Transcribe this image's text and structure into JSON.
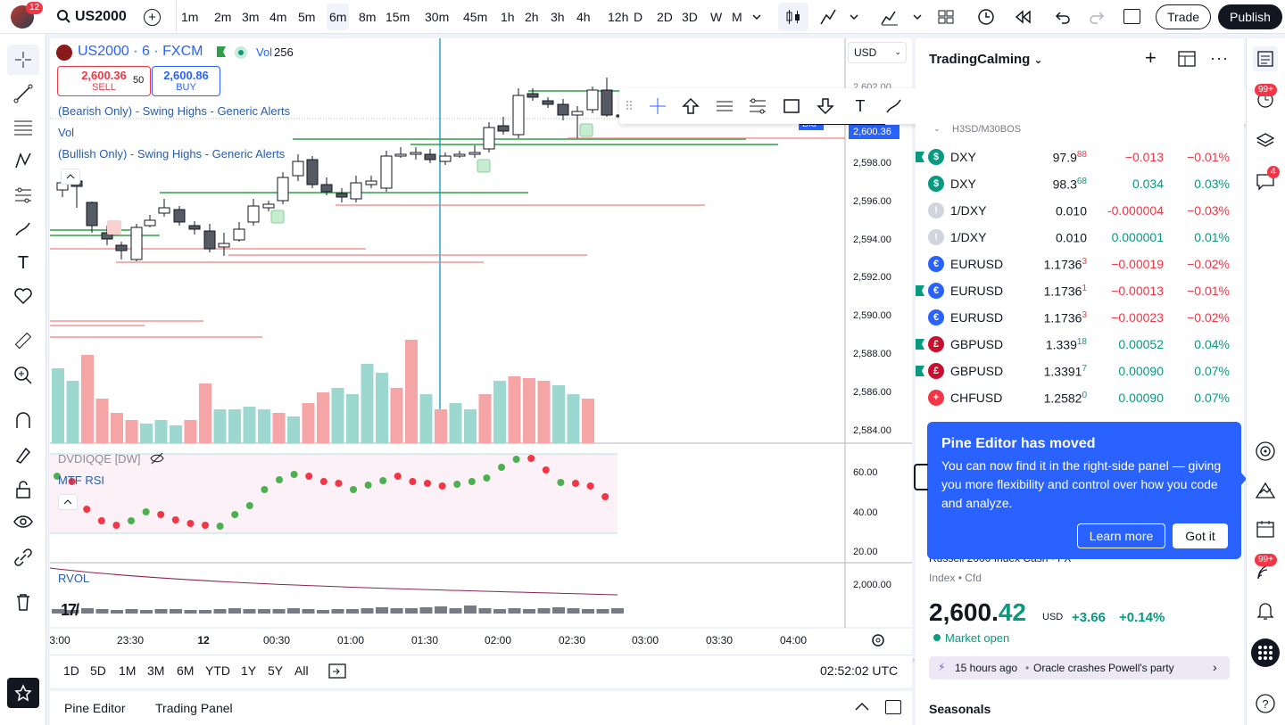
{
  "topbar": {
    "notif_count": "12",
    "symbol": "US2000",
    "intervals": [
      "1m",
      "2m",
      "3m",
      "4m",
      "5m",
      "6m",
      "8m",
      "15m",
      "30m",
      "45m",
      "1h",
      "2h",
      "3h",
      "4h",
      "12h",
      "D",
      "2D",
      "3D",
      "W",
      "M"
    ],
    "active_interval": "6m",
    "trade": "Trade",
    "publish": "Publish"
  },
  "legend": {
    "title": "US2000 · 6 · FXCM",
    "vol_label": "Vol",
    "vol_value": "256",
    "sell_price": "2,600.36",
    "sell_label": "SELL",
    "spread": "50",
    "buy_price": "2,600.86",
    "buy_label": "BUY",
    "ind1": "(Bearish Only) - Swing Highs - Generic Alerts",
    "ind2": "Vol",
    "ind3": "(Bullish Only) - Swing Highs - Generic Alerts",
    "pane2_a": "DVDIQQE [DW]",
    "pane2_b": "MTF RSI",
    "pane3": "RVOL"
  },
  "price_axis": {
    "currency": "USD",
    "labels": [
      "2,602.00",
      "2,598.00",
      "2,596.00",
      "2,594.00",
      "2,592.00",
      "2,590.00",
      "2,588.00",
      "2,586.00",
      "2,584.00"
    ],
    "bid_label": "Bid",
    "bid_price": "2,600.36",
    "rsi_labels": [
      "60.00",
      "40.00",
      "20.00"
    ],
    "rvol_label": "2,000.00"
  },
  "time_axis": [
    "3:00",
    "23:30",
    "12",
    "00:30",
    "01:00",
    "01:30",
    "02:00",
    "02:30",
    "03:00",
    "03:30",
    "04:00"
  ],
  "range_bar": {
    "ranges": [
      "1D",
      "5D",
      "1M",
      "3M",
      "6M",
      "YTD",
      "1Y",
      "5Y",
      "All"
    ],
    "clock": "02:52:02 UTC"
  },
  "bottom": {
    "pine": "Pine Editor",
    "trading": "Trading Panel"
  },
  "watchlist": {
    "title": "TradingCalming",
    "section": "H3SD/M30BOS",
    "rows": [
      {
        "sym": "DXY",
        "last": "97.9",
        "sup": "88",
        "chg": "−0.013",
        "chp": "−0.01%",
        "dir": "dn",
        "icon": "$",
        "color": "#089981",
        "flag": true
      },
      {
        "sym": "DXY",
        "last": "98.3",
        "sup": "68",
        "chg": "0.034",
        "chp": "0.03%",
        "dir": "up",
        "icon": "$",
        "color": "#089981",
        "flag": false
      },
      {
        "sym": "1/DXY",
        "last": "0.010",
        "sup": "",
        "chg": "-0.000004",
        "chp": "−0.03%",
        "dir": "dn",
        "icon": "!",
        "color": "#d1d4dc",
        "flag": false
      },
      {
        "sym": "1/DXY",
        "last": "0.010",
        "sup": "",
        "chg": "0.000001",
        "chp": "0.01%",
        "dir": "up",
        "icon": "!",
        "color": "#d1d4dc",
        "flag": false
      },
      {
        "sym": "EURUSD",
        "last": "1.1736",
        "sup": "3",
        "chg": "−0.00019",
        "chp": "−0.02%",
        "dir": "dn",
        "icon": "€",
        "color": "#2962ff",
        "flag": false
      },
      {
        "sym": "EURUSD",
        "last": "1.1736",
        "sup": "1",
        "chg": "−0.00013",
        "chp": "−0.01%",
        "dir": "dn",
        "icon": "€",
        "color": "#2962ff",
        "flag": true
      },
      {
        "sym": "EURUSD",
        "last": "1.1736",
        "sup": "3",
        "chg": "−0.00023",
        "chp": "−0.02%",
        "dir": "dn",
        "icon": "€",
        "color": "#2962ff",
        "flag": false
      },
      {
        "sym": "GBPUSD",
        "last": "1.339",
        "sup": "18",
        "chg": "0.00052",
        "chp": "0.04%",
        "dir": "up",
        "icon": "£",
        "color": "#c8102e",
        "flag": true
      },
      {
        "sym": "GBPUSD",
        "last": "1.3391",
        "sup": "7",
        "chg": "0.00090",
        "chp": "0.07%",
        "dir": "up",
        "icon": "£",
        "color": "#c8102e",
        "flag": true
      },
      {
        "sym": "CHFUSD",
        "last": "1.2582",
        "sup": "0",
        "chg": "0.00090",
        "chp": "0.07%",
        "dir": "up",
        "icon": "+",
        "color": "#f23645",
        "flag": false
      }
    ]
  },
  "popup": {
    "title": "Pine Editor has moved",
    "body": "You can now find it in the right-side panel — giving you more flexibility and control over how you code and analyze.",
    "learn": "Learn more",
    "gotit": "Got it"
  },
  "details": {
    "name": "Russell 2000 Index Cash · FX",
    "type": "Index",
    "kind": "Cfd",
    "price_main": "2,600.",
    "price_dec": "42",
    "currency": "USD",
    "change": "+3.66",
    "change_pct": "+0.14%",
    "status": "Market open",
    "news_time": "15 hours ago",
    "news_text": "Oracle crashes Powell's party",
    "seasonals": "Seasonals"
  },
  "rightbar_badges": {
    "alerts": "99+",
    "chat": "4",
    "feed": "99+"
  }
}
